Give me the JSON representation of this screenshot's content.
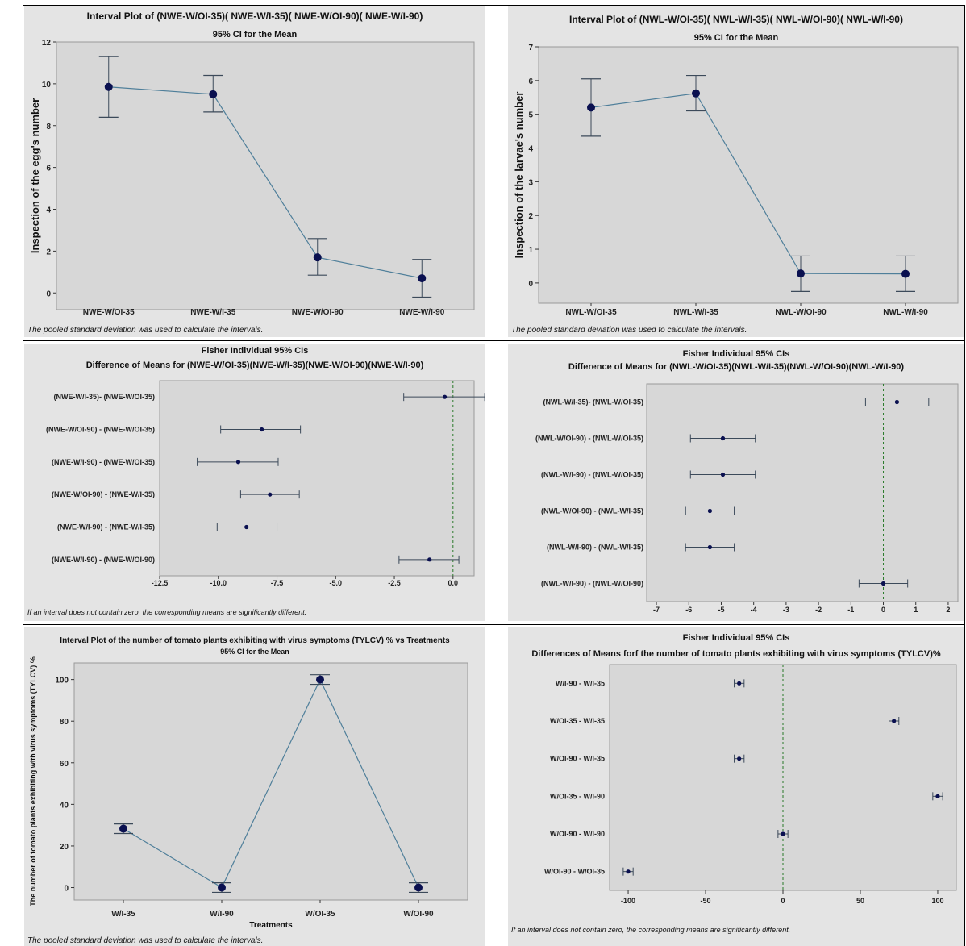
{
  "colors": {
    "panel_bg": "#e4e4e4",
    "plot_bg": "#d7d7d7",
    "series": "#4f7f9a",
    "marker": "#0a1050",
    "ref_line": "#2a7a2a"
  },
  "chart_data": [
    {
      "type": "interval",
      "title": "Interval Plot of (NWE-W/OI-35)( NWE-W/I-35)( NWE-W/OI-90)( NWE-W/I-90)",
      "subtitle": "95% CI for the Mean",
      "xlabel": "",
      "ylabel": "Inspection of the egg's number",
      "ylim": [
        -0.8,
        12
      ],
      "yticks": [
        0,
        2,
        4,
        6,
        8,
        10,
        12
      ],
      "yticks_labels": [
        "0",
        "2",
        "4",
        "6",
        "8",
        "10",
        "12"
      ],
      "categories": [
        "NWE-W/OI-35",
        "NWE-W/I-35",
        "NWE-W/OI-90",
        "NWE-W/I-90"
      ],
      "mean": [
        9.85,
        9.5,
        1.7,
        0.7
      ],
      "lower": [
        8.4,
        8.65,
        0.85,
        -0.2
      ],
      "upper": [
        11.3,
        10.4,
        2.6,
        1.6
      ],
      "footnote": "The pooled standard deviation was used to calculate the intervals."
    },
    {
      "type": "interval",
      "title": "Interval Plot of (NWL-W/OI-35)( NWL-W/I-35)( NWL-W/OI-90)( NWL-W/I-90)",
      "subtitle": "95% CI for the Mean",
      "xlabel": "",
      "ylabel": "Inspection of the larvae's number",
      "ylim": [
        -0.6,
        7
      ],
      "yticks": [
        0,
        1,
        2,
        3,
        4,
        5,
        6,
        7
      ],
      "yticks_labels": [
        "0",
        "1",
        "2",
        "3",
        "4",
        "5",
        "6",
        "7"
      ],
      "categories": [
        "NWL-W/OI-35",
        "NWL-W/I-35",
        "NWL-W/OI-90",
        "NWL-W/I-90"
      ],
      "mean": [
        5.2,
        5.62,
        0.28,
        0.27
      ],
      "lower": [
        4.35,
        5.1,
        -0.25,
        -0.25
      ],
      "upper": [
        6.05,
        6.15,
        0.8,
        0.8
      ],
      "footnote": "The pooled standard deviation was used to calculate the intervals."
    },
    {
      "type": "ci_difference",
      "title": "Fisher Individual 95% CIs",
      "subtitle": "Difference of Means for (NWE-W/OI-35)(NWE-W/I-35)(NWE-W/OI-90)(NWE-W/I-90)",
      "xlim": [
        -12.5,
        0.9
      ],
      "xticks": [
        -12.5,
        -10,
        -7.5,
        -5,
        -2.5,
        0
      ],
      "xticks_labels": [
        "-12.5",
        "-10.0",
        "-7.5",
        "-5.0",
        "-2.5",
        "0.0"
      ],
      "labels": [
        "(NWE-W/I-35)- (NWE-W/OI-35)",
        "(NWE-W/OI-90) - (NWE-W/OI-35)",
        "(NWE-W/I-90) - (NWE-W/OI-35)",
        "(NWE-W/OI-90) - (NWE-W/I-35)",
        "(NWE-W/I-90) - (NWE-W/I-35)",
        "(NWE-W/I-90) - (NWE-W/OI-90)"
      ],
      "estimate": [
        -0.35,
        -8.15,
        -9.15,
        -7.8,
        -8.8,
        -1.0
      ],
      "lower": [
        -2.1,
        -9.9,
        -10.9,
        -9.05,
        -10.05,
        -2.3
      ],
      "upper": [
        1.35,
        -6.5,
        -7.45,
        -6.55,
        -7.5,
        0.25
      ],
      "reference": 0,
      "footnote": "If an interval does not contain zero, the corresponding means are significantly different."
    },
    {
      "type": "ci_difference",
      "title": "Fisher Individual 95% CIs",
      "subtitle": "Difference of Means for (NWL-W/OI-35)(NWL-W/I-35)(NWL-W/OI-90)(NWL-W/I-90)",
      "xlim": [
        -7.3,
        2.3
      ],
      "xticks": [
        -7,
        -6,
        -5,
        -4,
        -3,
        -2,
        -1,
        0,
        1,
        2
      ],
      "xticks_labels": [
        "-7",
        "-6",
        "-5",
        "-4",
        "-3",
        "-2",
        "-1",
        "0",
        "1",
        "2"
      ],
      "labels": [
        "(NWL-W/I-35)- (NWL-W/OI-35)",
        "(NWL-W/OI-90) - (NWL-W/OI-35)",
        "(NWL-W/I-90) - (NWL-W/OI-35)",
        "(NWL-W/OI-90) - (NWL-W/I-35)",
        "(NWL-W/I-90) - (NWL-W/I-35)",
        "(NWL-W/I-90) - (NWL-W/OI-90)"
      ],
      "estimate": [
        0.42,
        -4.95,
        -4.95,
        -5.35,
        -5.35,
        0.0
      ],
      "lower": [
        -0.55,
        -5.95,
        -5.95,
        -6.1,
        -6.1,
        -0.75
      ],
      "upper": [
        1.4,
        -3.95,
        -3.95,
        -4.6,
        -4.6,
        0.75
      ],
      "reference": 0,
      "footnote": ""
    },
    {
      "type": "interval",
      "title": "Interval Plot of the number of tomato plants exhibiting with virus symptoms (TYLCV) % vs Treatments",
      "subtitle": "95% CI for the Mean",
      "xlabel": "Treatments",
      "ylabel": "The number of tomato plants exhibiting with virus symptoms (TYLCV) %",
      "ylim": [
        -6,
        108
      ],
      "yticks": [
        0,
        20,
        40,
        60,
        80,
        100
      ],
      "yticks_labels": [
        "0",
        "20",
        "40",
        "60",
        "80",
        "100"
      ],
      "categories": [
        "W/I-35",
        "W/I-90",
        "W/OI-35",
        "W/OI-90"
      ],
      "mean": [
        28.3,
        0,
        100,
        0
      ],
      "lower": [
        26,
        -2.3,
        97.7,
        -2.3
      ],
      "upper": [
        30.6,
        2.3,
        102.3,
        2.3
      ],
      "footnote": "The pooled standard deviation was used to calculate the intervals."
    },
    {
      "type": "ci_difference",
      "title": "Fisher Individual 95% CIs",
      "subtitle": "Differences of Means forf the number of tomato plants exhibiting with virus symptoms (TYLCV)%",
      "xlim": [
        -112,
        112
      ],
      "xticks": [
        -100,
        -50,
        0,
        50,
        100
      ],
      "xticks_labels": [
        "-100",
        "-50",
        "0",
        "50",
        "100"
      ],
      "labels": [
        "W/I-90 - W/I-35",
        "W/OI-35 - W/I-35",
        "W/OI-90 - W/I-35",
        "W/OI-35 - W/I-90",
        "W/OI-90 - W/I-90",
        "W/OI-90 - W/OI-35"
      ],
      "estimate": [
        -28.3,
        71.7,
        -28.3,
        100,
        0,
        -100
      ],
      "lower": [
        -31.5,
        68.5,
        -31.5,
        96.8,
        -3.2,
        -103.2
      ],
      "upper": [
        -25.1,
        74.9,
        -25.1,
        103.2,
        3.2,
        -96.8
      ],
      "reference": 0,
      "footnote": "If an interval does not contain zero, the corresponding means are significantly different."
    }
  ]
}
